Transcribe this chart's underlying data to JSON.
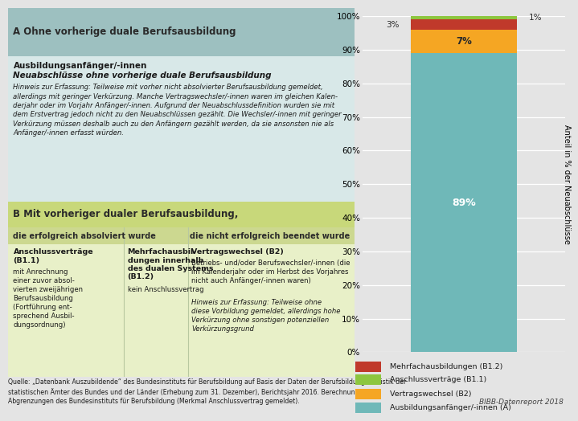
{
  "bar_values": [
    89,
    7,
    3,
    1
  ],
  "bar_labels": [
    "89%",
    "7%",
    "3%",
    "1%"
  ],
  "bar_colors": [
    "#6fb8b8",
    "#f5a623",
    "#c0392b",
    "#8dc63f"
  ],
  "legend_labels": [
    "Mehrfachausbildungen (B1.2)",
    "Anschlussverträge (B1.1)",
    "Vertragswechsel (B2)",
    "Ausbildungsanfänger/-innen (A)"
  ],
  "legend_colors": [
    "#c0392b",
    "#8dc63f",
    "#f5a623",
    "#6fb8b8"
  ],
  "ylabel": "Anteil in % der Neuabschlüsse",
  "yticks": [
    0,
    10,
    20,
    30,
    40,
    50,
    60,
    70,
    80,
    90,
    100
  ],
  "bg_color": "#e4e4e4",
  "panel_A_header_color": "#9dc0c0",
  "panel_B_header_color": "#c8d87a",
  "panel_table_col1_color": "#e8f0c8",
  "panel_table_col2_color": "#e8f0c8",
  "panel_A_sub_color": "#d8e8e8",
  "col_header_color": "#ccd890",
  "source_text": "Quelle: „Datenbank Auszubildende“ des Bundesinstituts für Berufsbildung auf Basis der Daten der Berufsbildungsstatistik der\nstatistischen Ämter des Bundes und der Länder (Erhebung zum 31. Dezember), Berichtsjahr 2016. Berechnungen und\nAbgrenzungen des Bundesinstituts für Berufsbildung (Merkmal Anschlussvertrag gemeldet).",
  "bibb_text": "BIBB-Datenreport 2018",
  "text_A_header": "A Ohne vorherige duale Berufsausbildung",
  "text_A_sub1_bold": "Ausbildungsanfänger/-innen",
  "text_A_sub2_bold_italic": "Neuabschlüsse ohne vorherige duale Berufsausbildung",
  "text_A_hint": "Hinweis zur Erfassung: Teilweise mit vorher nicht absolvierter Berufsausbildung gemeldet, allerdings mit geringer Verkürzung. Manche Vertragswechsler/-innen waren im gleichen Kalen-derjahr oder im Vorjahr Anfänger/-innen. Aufgrund der Neuabschlussdefinition wurden sie mit dem Erstvertrag jedoch nicht zu den Neuabschlüssen gezählt. Die Wechsler/-innen mit geringer Verkürzung müssen deshalb auch zu den Anfängern gezählt werden, da sie ansonsten nie als Anfänger/-innen erfasst würden.",
  "text_B_header": "B Mit vorheriger dualer Berufsausbildung,",
  "text_col1_header": "die erfolgreich absolviert wurde",
  "text_col2_header": "die nicht erfolgreich beendet wurde",
  "text_B11_title": "Anschlussverträge\n(B1.1)",
  "text_B11_body": "mit Anrechnung\neiner zuvor absol-\nvierten zweijährigen\nBerufsausbildung\n(Fortführung ent-\nsprechend Ausbil-\ndungsordnung)",
  "text_B12_title": "Mehrfachausbil-\ndungen innerhalb\ndes dualen Systems\n(B1.2)",
  "text_B12_body": "kein Anschlussvertrag",
  "text_B2_title": "Vertragswechsel (B2)",
  "text_B2_body": "Betriebs- und/oder Berufswechsler/-innen (die\nim Kalenderjahr oder im Herbst des Vorjahres\nnicht auch Anfänger/-innen waren)",
  "text_B2_hint": "Hinweis zur Erfassung: Teilweise ohne\ndiese Vorbildung gemeldet, allerdings hohe\nVerkürzung ohne sonstigen potenziellen\nVerkürzungsgrund"
}
